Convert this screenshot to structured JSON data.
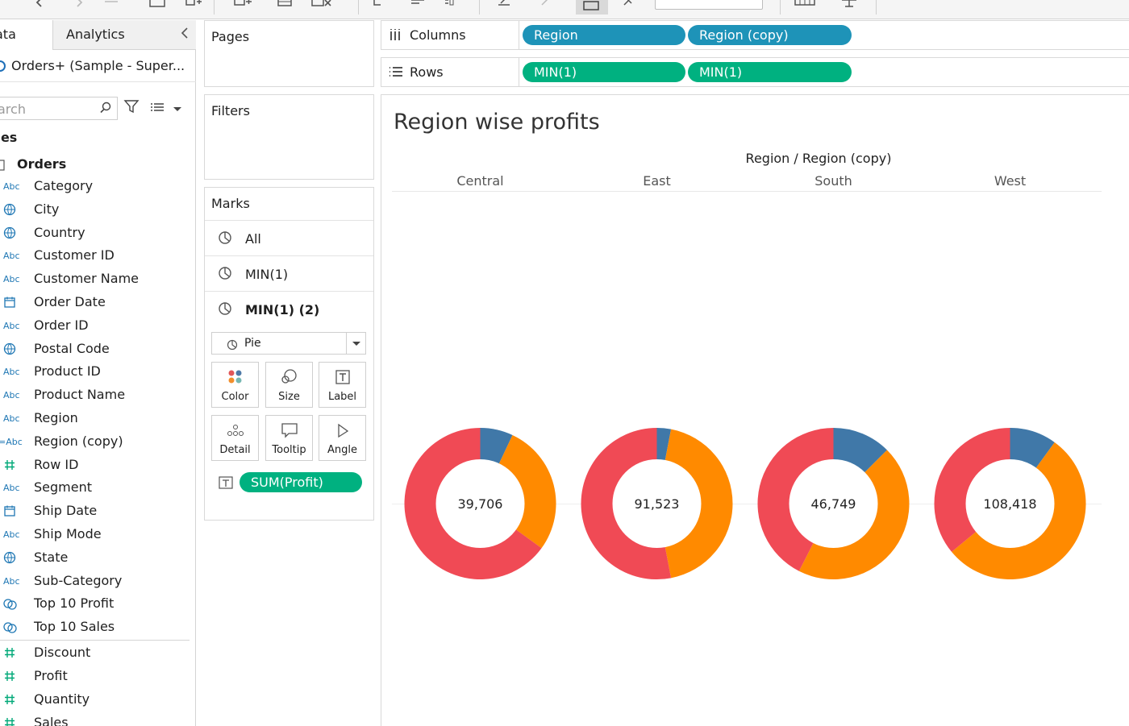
{
  "data_pane": {
    "tab_data": "ata",
    "tab_analytics": "Analytics",
    "datasource": "Orders+ (Sample - Super...",
    "search_placeholder": "arch",
    "tables_heading": "bles",
    "table_name": "Orders",
    "dimensions": [
      {
        "type": "Abc",
        "icon": "string-icon",
        "label": "Category"
      },
      {
        "type": "globe",
        "icon": "globe-icon",
        "label": "City"
      },
      {
        "type": "globe",
        "icon": "globe-icon",
        "label": "Country"
      },
      {
        "type": "Abc",
        "icon": "string-icon",
        "label": "Customer ID"
      },
      {
        "type": "Abc",
        "icon": "string-icon",
        "label": "Customer Name"
      },
      {
        "type": "date",
        "icon": "calendar-icon",
        "label": "Order Date"
      },
      {
        "type": "Abc",
        "icon": "string-icon",
        "label": "Order ID"
      },
      {
        "type": "globe",
        "icon": "globe-icon",
        "label": "Postal Code"
      },
      {
        "type": "Abc",
        "icon": "string-icon",
        "label": "Product ID"
      },
      {
        "type": "Abc",
        "icon": "string-icon",
        "label": "Product Name"
      },
      {
        "type": "Abc",
        "icon": "string-icon",
        "label": "Region"
      },
      {
        "type": "=Abc",
        "icon": "calculated-string-icon",
        "label": "Region (copy)"
      },
      {
        "type": "#",
        "icon": "number-icon",
        "label": "Row ID"
      },
      {
        "type": "Abc",
        "icon": "string-icon",
        "label": "Segment"
      },
      {
        "type": "date",
        "icon": "calendar-icon",
        "label": "Ship Date"
      },
      {
        "type": "Abc",
        "icon": "string-icon",
        "label": "Ship Mode"
      },
      {
        "type": "globe",
        "icon": "globe-icon",
        "label": "State"
      },
      {
        "type": "Abc",
        "icon": "string-icon",
        "label": "Sub-Category"
      },
      {
        "type": "set",
        "icon": "set-icon",
        "label": "Top 10 Profit"
      },
      {
        "type": "set",
        "icon": "set-icon",
        "label": "Top 10 Sales"
      }
    ],
    "measures": [
      {
        "type": "#",
        "icon": "number-icon",
        "label": "Discount"
      },
      {
        "type": "#",
        "icon": "number-icon",
        "label": "Profit"
      },
      {
        "type": "#",
        "icon": "number-icon",
        "label": "Quantity"
      },
      {
        "type": "#",
        "icon": "number-icon",
        "label": "Sales"
      }
    ]
  },
  "cards": {
    "pages": "Pages",
    "filters": "Filters",
    "marks": "Marks"
  },
  "marks": {
    "layers": [
      "All",
      "MIN(1)",
      "MIN(1) (2)"
    ],
    "mark_type": "Pie",
    "buttons": [
      "Color",
      "Size",
      "Label",
      "Detail",
      "Tooltip",
      "Angle"
    ],
    "label_pill": "SUM(Profit)"
  },
  "shelves": {
    "columns_label": "Columns",
    "rows_label": "Rows",
    "columns_pills": [
      "Region",
      "Region (copy)"
    ],
    "rows_pills": [
      "MIN(1)",
      "MIN(1)"
    ]
  },
  "colors": {
    "pill_blue": "#1e93b8",
    "pill_green": "#00b180",
    "seg_blue": "#4078a8",
    "seg_orange": "#ff8a00",
    "seg_red": "#f04a55"
  },
  "view": {
    "title": "Region wise profits",
    "header_title": "Region / Region (copy)"
  },
  "chart_data": {
    "type": "pie",
    "style": "donut",
    "categories": [
      "Central",
      "East",
      "South",
      "West"
    ],
    "center_labels": [
      "39,706",
      "91,523",
      "46,749",
      "108,418"
    ],
    "totals": [
      39706,
      91523,
      46749,
      108418
    ],
    "segment_colors": [
      "#4078a8",
      "#ff8a00",
      "#f04a55"
    ],
    "segment_fractions": [
      [
        0.07,
        0.28,
        0.65
      ],
      [
        0.03,
        0.44,
        0.53
      ],
      [
        0.125,
        0.45,
        0.425
      ],
      [
        0.1,
        0.54,
        0.36
      ]
    ]
  }
}
